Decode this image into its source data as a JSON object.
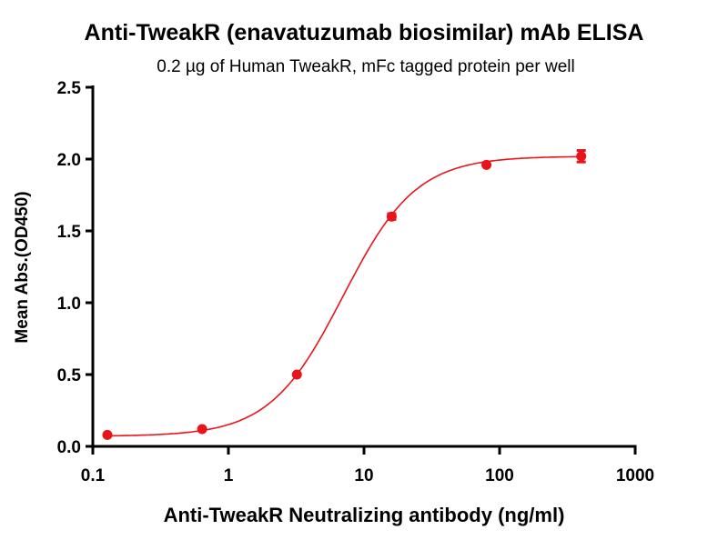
{
  "chart_data": {
    "type": "scatter",
    "title": "Anti-TweakR (enavatuzumab biosimilar) mAb ELISA",
    "subtitle": "0.2 µg of Human TweakR, mFc tagged protein per well",
    "xlabel": "Anti-TweakR Neutralizing antibody (ng/ml)",
    "ylabel": "Mean Abs.(OD450)",
    "xscale": "log",
    "xlim": [
      0.1,
      1000
    ],
    "ylim": [
      0,
      2.5
    ],
    "xticks": [
      "0.1",
      "1",
      "10",
      "100",
      "1000"
    ],
    "xtick_values": [
      0.1,
      1,
      10,
      100,
      1000
    ],
    "yticks": [
      "0.0",
      "0.5",
      "1.0",
      "1.5",
      "2.0",
      "2.5"
    ],
    "ytick_values": [
      0,
      0.5,
      1.0,
      1.5,
      2.0,
      2.5
    ],
    "grid": false,
    "color": "#e8141a",
    "series": [
      {
        "x": [
          0.128,
          0.64,
          3.2,
          16,
          80,
          400
        ],
        "y": [
          0.08,
          0.12,
          0.5,
          1.6,
          1.96,
          2.02
        ],
        "yerr": [
          0.01,
          0.01,
          0.01,
          0.02,
          0.01,
          0.04
        ]
      }
    ],
    "fit": {
      "model": "4PL",
      "bottom": 0.07,
      "top": 2.02,
      "ec50": 7,
      "hill": 1.61
    }
  }
}
